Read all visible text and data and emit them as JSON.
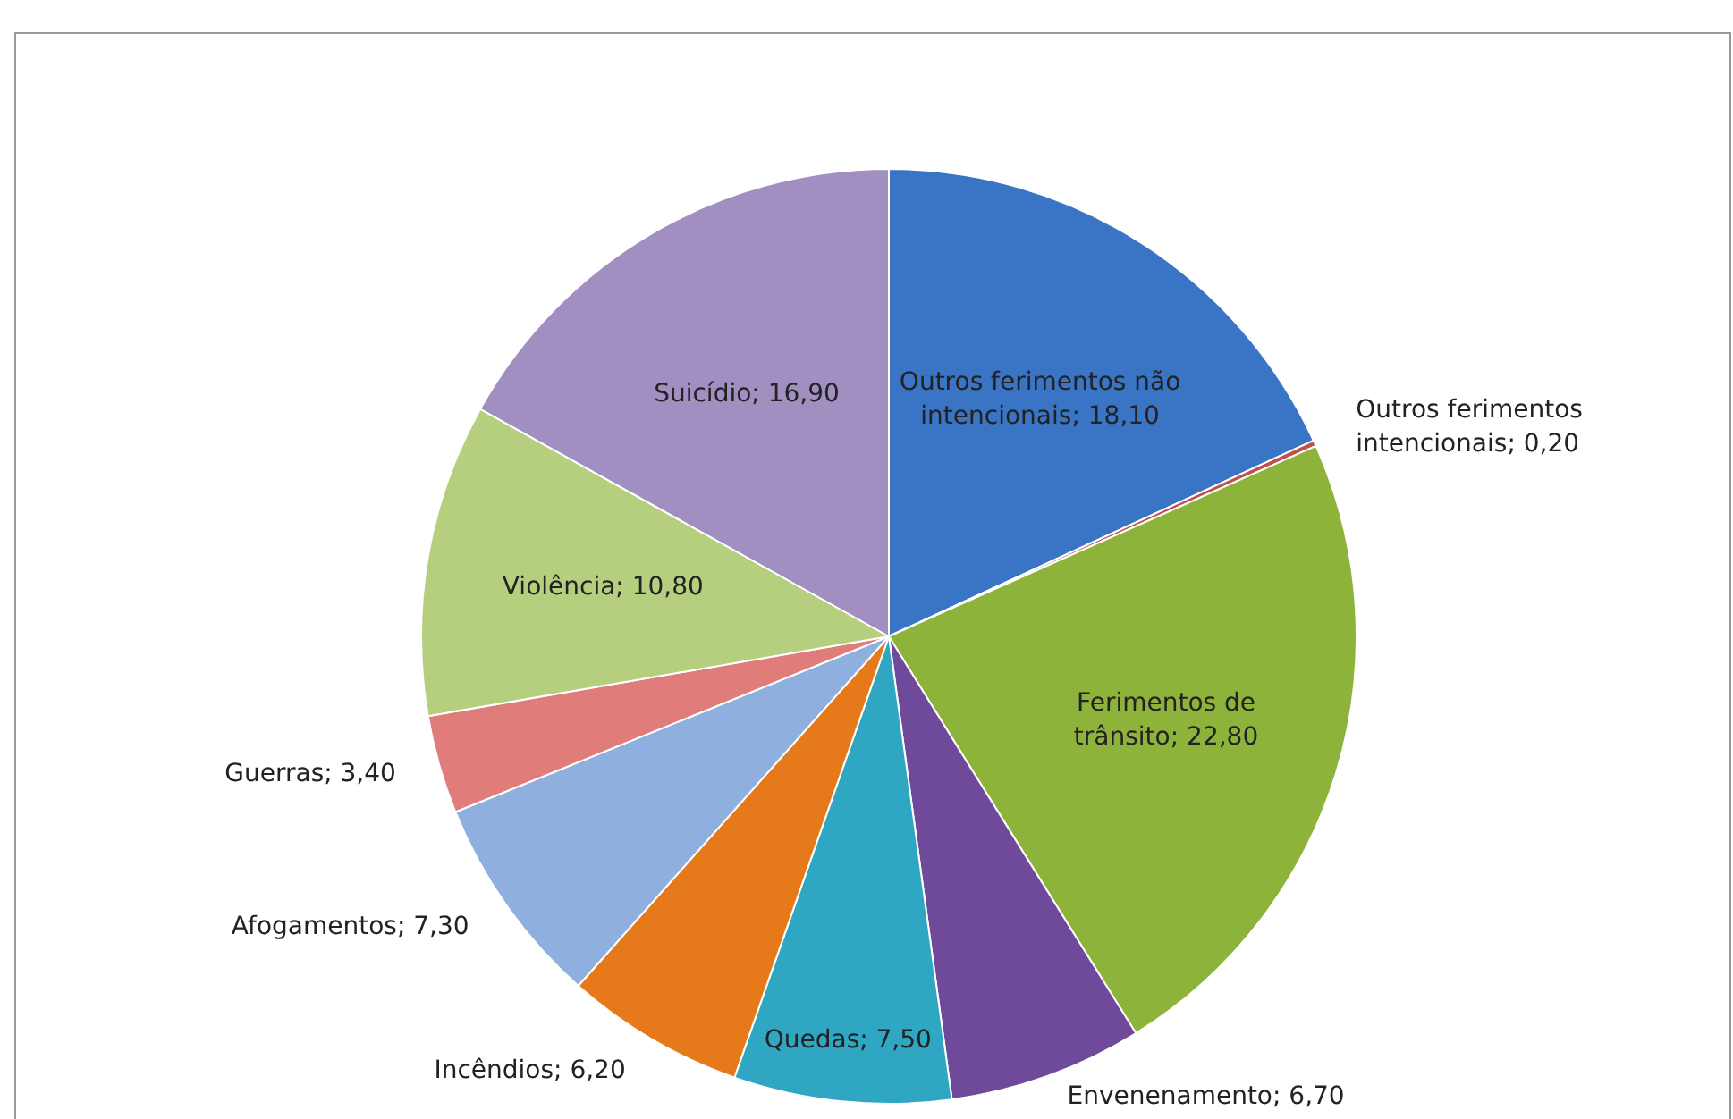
{
  "chart_data": {
    "type": "pie",
    "categories": [
      "Outros ferimentos não intencionais",
      "Outros ferimentos intencionais",
      "Ferimentos de trânsito",
      "Envenenamento",
      "Quedas",
      "Incêndios",
      "Afogamentos",
      "Guerras",
      "Violência",
      "Suicídio"
    ],
    "values": [
      18.1,
      0.2,
      22.8,
      6.7,
      7.5,
      6.2,
      7.3,
      3.4,
      10.8,
      16.9
    ],
    "value_labels": [
      "18,10",
      "0,20",
      "22,80",
      "6,70",
      "7,50",
      "6,20",
      "7,30",
      "3,40",
      "10,80",
      "16,90"
    ],
    "colors": [
      "#3a74c4",
      "#c0504d",
      "#8db33a",
      "#6f4a9a",
      "#2fa6c2",
      "#e67a1a",
      "#8fb0df",
      "#e07d7b",
      "#b5cf7f",
      "#a08fc0"
    ],
    "legend": false
  }
}
